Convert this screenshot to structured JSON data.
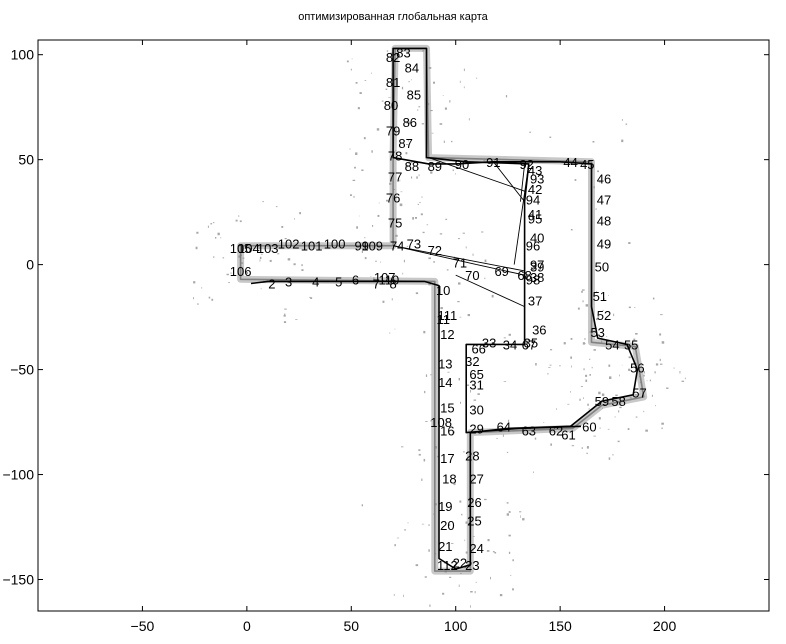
{
  "chart_data": {
    "type": "scatter",
    "title": "оптимизированная глобальная карта",
    "xlabel": "",
    "ylabel": "",
    "xlim": [
      -100,
      250
    ],
    "ylim": [
      -165,
      107
    ],
    "xticks": [
      -50,
      0,
      50,
      100,
      150,
      200
    ],
    "yticks": [
      -150,
      -100,
      -50,
      0,
      50,
      100
    ],
    "grid": false,
    "legend": "none",
    "colors": {
      "trajectory": "#000000",
      "map": "#9a9a9a"
    },
    "corridor_outline": [
      [
        -3,
        9
      ],
      [
        70,
        9
      ],
      [
        70,
        52
      ],
      [
        71,
        103
      ],
      [
        86,
        103
      ],
      [
        87,
        51
      ],
      [
        165,
        49
      ],
      [
        165,
        -37
      ],
      [
        186,
        -39
      ],
      [
        190,
        -63
      ],
      [
        170,
        -67
      ],
      [
        156,
        -78
      ],
      [
        107,
        -80
      ],
      [
        107,
        -146
      ],
      [
        90,
        -146
      ],
      [
        90,
        -8
      ],
      [
        -3,
        -7
      ],
      [
        -3,
        9
      ]
    ],
    "trajectory": [
      [
        2,
        -9
      ],
      [
        10,
        -8
      ],
      [
        20,
        -8
      ],
      [
        32,
        -8
      ],
      [
        40,
        -8
      ],
      [
        52,
        -8
      ],
      [
        60,
        -8
      ],
      [
        74,
        -8
      ],
      [
        85,
        -8
      ],
      [
        92,
        -10
      ],
      [
        92,
        -20
      ],
      [
        92,
        -35
      ],
      [
        92,
        -60
      ],
      [
        92,
        -90
      ],
      [
        92,
        -110
      ],
      [
        92,
        -130
      ],
      [
        92,
        -140
      ],
      [
        100,
        -145
      ],
      [
        107,
        -143
      ],
      [
        107,
        -120
      ],
      [
        107,
        -90
      ],
      [
        107,
        -80
      ],
      [
        125,
        -78
      ],
      [
        155,
        -77
      ],
      [
        170,
        -65
      ],
      [
        185,
        -62
      ],
      [
        187,
        -50
      ],
      [
        182,
        -38
      ],
      [
        168,
        -35
      ],
      [
        165,
        -20
      ],
      [
        165,
        0
      ],
      [
        165,
        48
      ],
      [
        150,
        49
      ],
      [
        135,
        49
      ],
      [
        118,
        49
      ],
      [
        100,
        48
      ],
      [
        87,
        48
      ],
      [
        70,
        51
      ],
      [
        70,
        75
      ],
      [
        70,
        103
      ],
      [
        86,
        103
      ],
      [
        86,
        75
      ],
      [
        86,
        51
      ],
      [
        105,
        49
      ],
      [
        135,
        48
      ],
      [
        133,
        30
      ],
      [
        133,
        0
      ],
      [
        133,
        -38
      ],
      [
        115,
        -38
      ],
      [
        105,
        -38
      ],
      [
        105,
        -50
      ],
      [
        105,
        -75
      ],
      [
        105,
        -80
      ],
      [
        130,
        -78
      ],
      [
        160,
        -77
      ]
    ],
    "loop_closures": [
      [
        [
          70,
          9
        ],
        [
          110,
          0
        ]
      ],
      [
        [
          110,
          0
        ],
        [
          133,
          -5
        ]
      ],
      [
        [
          87,
          51
        ],
        [
          133,
          35
        ]
      ],
      [
        [
          118,
          49
        ],
        [
          133,
          30
        ]
      ],
      [
        [
          133,
          48
        ],
        [
          131,
          30
        ]
      ],
      [
        [
          70,
          9
        ],
        [
          133,
          -3
        ]
      ],
      [
        [
          100,
          -5
        ],
        [
          133,
          -20
        ]
      ],
      [
        [
          135,
          48
        ],
        [
          128,
          0
        ]
      ]
    ],
    "nodes": [
      {
        "id": "2",
        "x": 12,
        "y": -9
      },
      {
        "id": "3",
        "x": 20,
        "y": -8
      },
      {
        "id": "4",
        "x": 33,
        "y": -8
      },
      {
        "id": "5",
        "x": 44,
        "y": -8
      },
      {
        "id": "6",
        "x": 52,
        "y": -7
      },
      {
        "id": "7",
        "x": 62,
        "y": -9
      },
      {
        "id": "8",
        "x": 70,
        "y": -9
      },
      {
        "id": "10",
        "x": 94,
        "y": -12
      },
      {
        "id": "11",
        "x": 94,
        "y": -26
      },
      {
        "id": "12",
        "x": 96,
        "y": -33
      },
      {
        "id": "13",
        "x": 95,
        "y": -47
      },
      {
        "id": "14",
        "x": 95,
        "y": -56
      },
      {
        "id": "15",
        "x": 96,
        "y": -68
      },
      {
        "id": "16",
        "x": 96,
        "y": -79
      },
      {
        "id": "17",
        "x": 96,
        "y": -92
      },
      {
        "id": "18",
        "x": 97,
        "y": -102
      },
      {
        "id": "19",
        "x": 95,
        "y": -115
      },
      {
        "id": "20",
        "x": 96,
        "y": -124
      },
      {
        "id": "21",
        "x": 95,
        "y": -134
      },
      {
        "id": "22",
        "x": 102,
        "y": -142
      },
      {
        "id": "23",
        "x": 108,
        "y": -143
      },
      {
        "id": "24",
        "x": 110,
        "y": -135
      },
      {
        "id": "25",
        "x": 109,
        "y": -122
      },
      {
        "id": "26",
        "x": 109,
        "y": -113
      },
      {
        "id": "27",
        "x": 110,
        "y": -102
      },
      {
        "id": "28",
        "x": 108,
        "y": -91
      },
      {
        "id": "29",
        "x": 110,
        "y": -78
      },
      {
        "id": "30",
        "x": 110,
        "y": -69
      },
      {
        "id": "31",
        "x": 110,
        "y": -57
      },
      {
        "id": "32",
        "x": 108,
        "y": -46
      },
      {
        "id": "33",
        "x": 116,
        "y": -37
      },
      {
        "id": "34",
        "x": 126,
        "y": -38
      },
      {
        "id": "35",
        "x": 136,
        "y": -37
      },
      {
        "id": "36",
        "x": 140,
        "y": -31
      },
      {
        "id": "37",
        "x": 138,
        "y": -17
      },
      {
        "id": "38",
        "x": 139,
        "y": -6
      },
      {
        "id": "39",
        "x": 139,
        "y": -1
      },
      {
        "id": "40",
        "x": 139,
        "y": 13
      },
      {
        "id": "41",
        "x": 138,
        "y": 24
      },
      {
        "id": "42",
        "x": 138,
        "y": 36
      },
      {
        "id": "43",
        "x": 138,
        "y": 45
      },
      {
        "id": "44",
        "x": 155,
        "y": 49
      },
      {
        "id": "45",
        "x": 163,
        "y": 48
      },
      {
        "id": "46",
        "x": 171,
        "y": 41
      },
      {
        "id": "47",
        "x": 171,
        "y": 31
      },
      {
        "id": "48",
        "x": 171,
        "y": 21
      },
      {
        "id": "49",
        "x": 171,
        "y": 10
      },
      {
        "id": "50",
        "x": 170,
        "y": -1
      },
      {
        "id": "51",
        "x": 169,
        "y": -15
      },
      {
        "id": "52",
        "x": 171,
        "y": -24
      },
      {
        "id": "53",
        "x": 168,
        "y": -32
      },
      {
        "id": "54",
        "x": 175,
        "y": -38
      },
      {
        "id": "55",
        "x": 184,
        "y": -38
      },
      {
        "id": "56",
        "x": 187,
        "y": -49
      },
      {
        "id": "57",
        "x": 188,
        "y": -61
      },
      {
        "id": "58",
        "x": 178,
        "y": -65
      },
      {
        "id": "59",
        "x": 170,
        "y": -65
      },
      {
        "id": "60",
        "x": 164,
        "y": -77
      },
      {
        "id": "61",
        "x": 154,
        "y": -81
      },
      {
        "id": "62",
        "x": 148,
        "y": -79
      },
      {
        "id": "63",
        "x": 135,
        "y": -79
      },
      {
        "id": "64",
        "x": 123,
        "y": -77
      },
      {
        "id": "65",
        "x": 110,
        "y": -52
      },
      {
        "id": "66",
        "x": 111,
        "y": -40
      },
      {
        "id": "67",
        "x": 135,
        "y": -38
      },
      {
        "id": "68",
        "x": 133,
        "y": -5
      },
      {
        "id": "69",
        "x": 122,
        "y": -3
      },
      {
        "id": "70",
        "x": 108,
        "y": -5
      },
      {
        "id": "71",
        "x": 102,
        "y": 1
      },
      {
        "id": "72",
        "x": 90,
        "y": 7
      },
      {
        "id": "73",
        "x": 80,
        "y": 10
      },
      {
        "id": "74",
        "x": 72,
        "y": 9
      },
      {
        "id": "75",
        "x": 71,
        "y": 20
      },
      {
        "id": "76",
        "x": 70,
        "y": 32
      },
      {
        "id": "77",
        "x": 71,
        "y": 42
      },
      {
        "id": "78",
        "x": 71,
        "y": 52
      },
      {
        "id": "79",
        "x": 70,
        "y": 64
      },
      {
        "id": "80",
        "x": 69,
        "y": 76
      },
      {
        "id": "81",
        "x": 70,
        "y": 87
      },
      {
        "id": "82",
        "x": 70,
        "y": 99
      },
      {
        "id": "83",
        "x": 75,
        "y": 101
      },
      {
        "id": "84",
        "x": 79,
        "y": 94
      },
      {
        "id": "85",
        "x": 80,
        "y": 81
      },
      {
        "id": "86",
        "x": 78,
        "y": 68
      },
      {
        "id": "87",
        "x": 76,
        "y": 58
      },
      {
        "id": "88",
        "x": 79,
        "y": 47
      },
      {
        "id": "89",
        "x": 90,
        "y": 47
      },
      {
        "id": "90",
        "x": 103,
        "y": 48
      },
      {
        "id": "91",
        "x": 118,
        "y": 49
      },
      {
        "id": "92",
        "x": 134,
        "y": 48
      },
      {
        "id": "93",
        "x": 139,
        "y": 41
      },
      {
        "id": "94",
        "x": 137,
        "y": 31
      },
      {
        "id": "95",
        "x": 138,
        "y": 22
      },
      {
        "id": "96",
        "x": 137,
        "y": 9
      },
      {
        "id": "97",
        "x": 139,
        "y": 0
      },
      {
        "id": "98",
        "x": 137,
        "y": -7
      },
      {
        "id": "99",
        "x": 55,
        "y": 9
      },
      {
        "id": "100",
        "x": 42,
        "y": 10
      },
      {
        "id": "101",
        "x": 31,
        "y": 9
      },
      {
        "id": "102",
        "x": 20,
        "y": 10
      },
      {
        "id": "103",
        "x": 10,
        "y": 8
      },
      {
        "id": "104",
        "x": 1,
        "y": 8
      },
      {
        "id": "105",
        "x": -3,
        "y": 8
      },
      {
        "id": "106",
        "x": -3,
        "y": -3
      },
      {
        "id": "107",
        "x": 66,
        "y": -6
      },
      {
        "id": "108",
        "x": 93,
        "y": -75
      },
      {
        "id": "109",
        "x": 60,
        "y": 9
      },
      {
        "id": "110",
        "x": 68,
        "y": -7
      },
      {
        "id": "111",
        "x": 96,
        "y": -24
      },
      {
        "id": "112",
        "x": 96,
        "y": -143
      }
    ]
  }
}
